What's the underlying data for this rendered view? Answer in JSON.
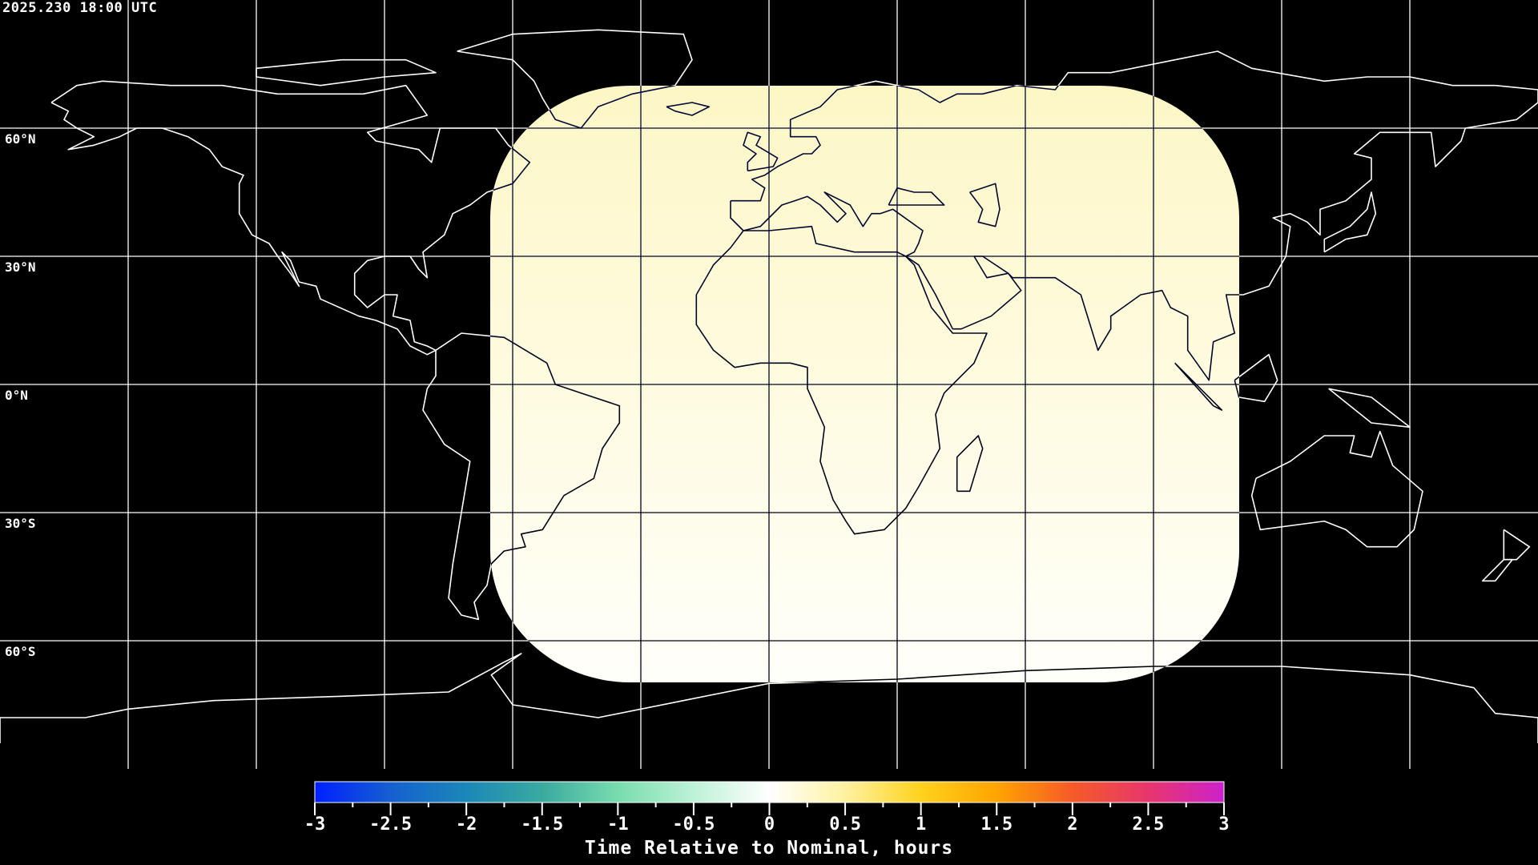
{
  "header": {
    "timestamp": "2025.230 18:00 UTC"
  },
  "map": {
    "projection": "equirectangular",
    "background_color": "#000000",
    "coastline_color": "#ffffff",
    "gridline_spacing_degrees": 30,
    "lat_labels": [
      "60°N",
      "30°N",
      "0°N",
      "30°S",
      "60°S"
    ],
    "coverage_fill_top": "#fdf7c6",
    "coverage_fill_bottom": "#fffffa",
    "coverage_value_hours": 0.1
  },
  "colorbar": {
    "title": "Time Relative to Nominal, hours",
    "range": [
      -3,
      3
    ],
    "tick_labels": [
      "-3",
      "-2.5",
      "-2",
      "-1.5",
      "-1",
      "-0.5",
      "0",
      "0.5",
      "1",
      "1.5",
      "2",
      "2.5",
      "3"
    ],
    "colors": [
      "#0020ff",
      "#1560d0",
      "#1a88b8",
      "#3aaaa0",
      "#78dcae",
      "#bdf2d6",
      "#ffffff",
      "#fff2a0",
      "#ffd21e",
      "#ffa400",
      "#f55a28",
      "#e8366c",
      "#cc22cc"
    ]
  }
}
